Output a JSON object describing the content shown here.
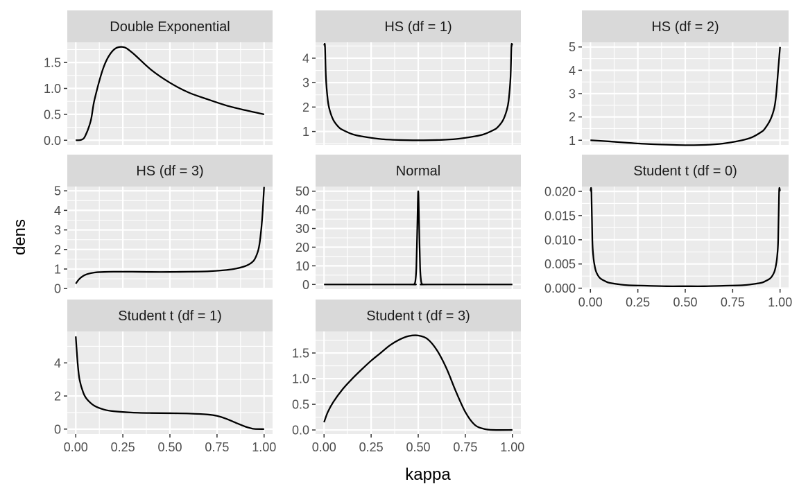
{
  "chart_data": {
    "type": "line",
    "layout": "facet_wrap",
    "xlabel": "kappa",
    "ylabel": "dens",
    "scales": "free_y",
    "x_ticks": [
      "0.00",
      "0.25",
      "0.50",
      "0.75",
      "1.00"
    ],
    "colors": {
      "panel_bg": "#ebebeb",
      "strip_bg": "#d9d9d9",
      "grid": "#ffffff",
      "line": "#000000",
      "tick_text": "#4d4d4d"
    },
    "panels": [
      {
        "title": "Double Exponential",
        "ylim": [
          -0.09,
          1.89
        ],
        "y_ticks": [
          "0.0",
          "0.5",
          "1.0",
          "1.5"
        ],
        "x": [
          0.0,
          0.03,
          0.05,
          0.08,
          0.1,
          0.15,
          0.2,
          0.25,
          0.3,
          0.4,
          0.5,
          0.6,
          0.7,
          0.8,
          0.9,
          1.0
        ],
        "y": [
          0.0,
          0.01,
          0.08,
          0.38,
          0.79,
          1.43,
          1.74,
          1.8,
          1.69,
          1.36,
          1.11,
          0.92,
          0.79,
          0.67,
          0.58,
          0.5
        ]
      },
      {
        "title": "HS (df = 1)",
        "ylim": [
          0.45,
          4.65
        ],
        "y_ticks": [
          "1",
          "2",
          "3",
          "4"
        ],
        "x": [
          0.0,
          0.005,
          0.01,
          0.02,
          0.03,
          0.05,
          0.08,
          0.1,
          0.15,
          0.2,
          0.3,
          0.4,
          0.5,
          0.6,
          0.7,
          0.8,
          0.85,
          0.9,
          0.92,
          0.95,
          0.97,
          0.98,
          0.99,
          0.995,
          1.0
        ],
        "y": [
          4.5,
          4.5,
          3.2,
          2.27,
          1.87,
          1.46,
          1.16,
          1.06,
          0.89,
          0.8,
          0.69,
          0.65,
          0.64,
          0.65,
          0.69,
          0.8,
          0.89,
          1.06,
          1.16,
          1.46,
          1.87,
          2.27,
          3.2,
          4.5,
          4.5
        ]
      },
      {
        "title": "HS (df = 2)",
        "ylim": [
          0.8,
          5.2
        ],
        "y_ticks": [
          "1",
          "2",
          "3",
          "4",
          "5"
        ],
        "x": [
          0.0,
          0.1,
          0.2,
          0.3,
          0.4,
          0.5,
          0.6,
          0.7,
          0.8,
          0.85,
          0.9,
          0.92,
          0.95,
          0.97,
          0.98,
          0.99,
          1.0
        ],
        "y": [
          1.0,
          0.95,
          0.89,
          0.84,
          0.81,
          0.79,
          0.8,
          0.86,
          1.0,
          1.12,
          1.35,
          1.5,
          1.9,
          2.4,
          3.0,
          4.0,
          5.0
        ]
      },
      {
        "title": "HS (df = 3)",
        "ylim": [
          -0.03,
          5.22
        ],
        "y_ticks": [
          "0",
          "1",
          "2",
          "3",
          "4",
          "5"
        ],
        "x": [
          0.0,
          0.02,
          0.05,
          0.1,
          0.15,
          0.2,
          0.3,
          0.4,
          0.5,
          0.6,
          0.7,
          0.8,
          0.85,
          0.9,
          0.93,
          0.95,
          0.97,
          0.98,
          0.99,
          1.0
        ],
        "y": [
          0.25,
          0.5,
          0.7,
          0.82,
          0.85,
          0.86,
          0.86,
          0.85,
          0.85,
          0.86,
          0.88,
          0.95,
          1.02,
          1.15,
          1.3,
          1.5,
          2.0,
          2.6,
          3.6,
          5.2
        ]
      },
      {
        "title": "Normal",
        "ylim": [
          -2.5,
          52.5
        ],
        "y_ticks": [
          "0",
          "10",
          "20",
          "30",
          "40",
          "50"
        ],
        "x": [
          0.0,
          0.45,
          0.47,
          0.48,
          0.485,
          0.49,
          0.495,
          0.5,
          0.505,
          0.51,
          0.515,
          0.52,
          0.53,
          0.55,
          1.0
        ],
        "y": [
          0.0,
          0.0,
          0.0,
          0.3,
          2.0,
          9.0,
          30.0,
          50.0,
          30.0,
          9.0,
          2.0,
          0.3,
          0.0,
          0.0,
          0.0
        ]
      },
      {
        "title": "Student t (df = 0)",
        "ylim": [
          -0.0002,
          0.021
        ],
        "y_ticks": [
          "0.000",
          "0.005",
          "0.010",
          "0.015",
          "0.020"
        ],
        "x": [
          0.0,
          0.005,
          0.01,
          0.015,
          0.02,
          0.03,
          0.05,
          0.08,
          0.1,
          0.15,
          0.2,
          0.3,
          0.4,
          0.5,
          0.6,
          0.7,
          0.8,
          0.85,
          0.9,
          0.92,
          0.95,
          0.97,
          0.98,
          0.985,
          0.99,
          0.995,
          1.0
        ],
        "y": [
          0.02,
          0.02,
          0.0099,
          0.0067,
          0.0051,
          0.0034,
          0.0021,
          0.0014,
          0.0011,
          0.0008,
          0.0006,
          0.0005,
          0.0004,
          0.0004,
          0.0004,
          0.0005,
          0.0006,
          0.0008,
          0.0011,
          0.0014,
          0.0021,
          0.0034,
          0.0051,
          0.0067,
          0.0099,
          0.02,
          0.02
        ]
      },
      {
        "title": "Student t (df = 1)",
        "ylim": [
          -0.3,
          5.9
        ],
        "y_ticks": [
          "0",
          "2",
          "4"
        ],
        "x": [
          0.0,
          0.01,
          0.02,
          0.04,
          0.06,
          0.1,
          0.15,
          0.2,
          0.3,
          0.4,
          0.5,
          0.6,
          0.7,
          0.75,
          0.8,
          0.85,
          0.9,
          0.93,
          0.95,
          1.0
        ],
        "y": [
          5.6,
          4.0,
          3.0,
          2.2,
          1.8,
          1.4,
          1.18,
          1.08,
          1.0,
          0.97,
          0.96,
          0.94,
          0.88,
          0.8,
          0.62,
          0.38,
          0.15,
          0.05,
          0.01,
          0.0
        ]
      },
      {
        "title": "Student t (df = 3)",
        "ylim": [
          -0.08,
          1.92
        ],
        "y_ticks": [
          "0.0",
          "0.5",
          "1.0",
          "1.5"
        ],
        "x": [
          0.0,
          0.02,
          0.05,
          0.1,
          0.15,
          0.2,
          0.25,
          0.3,
          0.35,
          0.4,
          0.45,
          0.5,
          0.55,
          0.6,
          0.65,
          0.7,
          0.75,
          0.8,
          0.85,
          0.9,
          1.0
        ],
        "y": [
          0.15,
          0.35,
          0.55,
          0.8,
          1.0,
          1.18,
          1.35,
          1.5,
          1.65,
          1.76,
          1.83,
          1.84,
          1.77,
          1.55,
          1.2,
          0.75,
          0.35,
          0.1,
          0.02,
          0.0,
          0.0
        ]
      }
    ]
  }
}
